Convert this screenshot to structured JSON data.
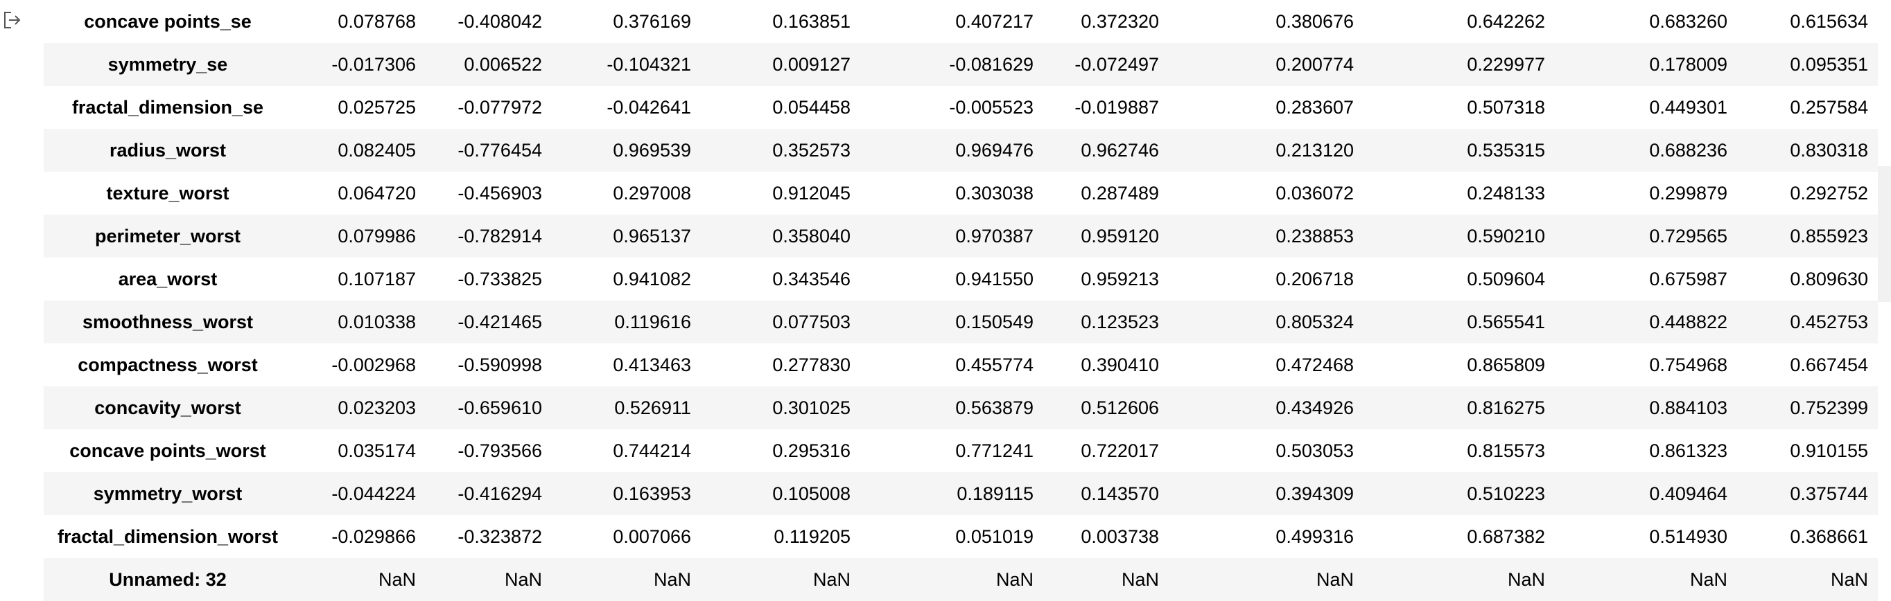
{
  "output_icon": "output-exit-icon",
  "rows": [
    {
      "label": "concave points_se",
      "values": [
        "0.078768",
        "-0.408042",
        "0.376169",
        "0.163851",
        "0.407217",
        "0.372320",
        "0.380676",
        "0.642262",
        "0.683260",
        "0.615634"
      ]
    },
    {
      "label": "symmetry_se",
      "values": [
        "-0.017306",
        "0.006522",
        "-0.104321",
        "0.009127",
        "-0.081629",
        "-0.072497",
        "0.200774",
        "0.229977",
        "0.178009",
        "0.095351"
      ]
    },
    {
      "label": "fractal_dimension_se",
      "values": [
        "0.025725",
        "-0.077972",
        "-0.042641",
        "0.054458",
        "-0.005523",
        "-0.019887",
        "0.283607",
        "0.507318",
        "0.449301",
        "0.257584"
      ]
    },
    {
      "label": "radius_worst",
      "values": [
        "0.082405",
        "-0.776454",
        "0.969539",
        "0.352573",
        "0.969476",
        "0.962746",
        "0.213120",
        "0.535315",
        "0.688236",
        "0.830318"
      ]
    },
    {
      "label": "texture_worst",
      "values": [
        "0.064720",
        "-0.456903",
        "0.297008",
        "0.912045",
        "0.303038",
        "0.287489",
        "0.036072",
        "0.248133",
        "0.299879",
        "0.292752"
      ]
    },
    {
      "label": "perimeter_worst",
      "values": [
        "0.079986",
        "-0.782914",
        "0.965137",
        "0.358040",
        "0.970387",
        "0.959120",
        "0.238853",
        "0.590210",
        "0.729565",
        "0.855923"
      ]
    },
    {
      "label": "area_worst",
      "values": [
        "0.107187",
        "-0.733825",
        "0.941082",
        "0.343546",
        "0.941550",
        "0.959213",
        "0.206718",
        "0.509604",
        "0.675987",
        "0.809630"
      ]
    },
    {
      "label": "smoothness_worst",
      "values": [
        "0.010338",
        "-0.421465",
        "0.119616",
        "0.077503",
        "0.150549",
        "0.123523",
        "0.805324",
        "0.565541",
        "0.448822",
        "0.452753"
      ]
    },
    {
      "label": "compactness_worst",
      "values": [
        "-0.002968",
        "-0.590998",
        "0.413463",
        "0.277830",
        "0.455774",
        "0.390410",
        "0.472468",
        "0.865809",
        "0.754968",
        "0.667454"
      ]
    },
    {
      "label": "concavity_worst",
      "values": [
        "0.023203",
        "-0.659610",
        "0.526911",
        "0.301025",
        "0.563879",
        "0.512606",
        "0.434926",
        "0.816275",
        "0.884103",
        "0.752399"
      ]
    },
    {
      "label": "concave points_worst",
      "values": [
        "0.035174",
        "-0.793566",
        "0.744214",
        "0.295316",
        "0.771241",
        "0.722017",
        "0.503053",
        "0.815573",
        "0.861323",
        "0.910155"
      ]
    },
    {
      "label": "symmetry_worst",
      "values": [
        "-0.044224",
        "-0.416294",
        "0.163953",
        "0.105008",
        "0.189115",
        "0.143570",
        "0.394309",
        "0.510223",
        "0.409464",
        "0.375744"
      ]
    },
    {
      "label": "fractal_dimension_worst",
      "values": [
        "-0.029866",
        "-0.323872",
        "0.007066",
        "0.119205",
        "0.051019",
        "0.003738",
        "0.499316",
        "0.687382",
        "0.514930",
        "0.368661"
      ]
    },
    {
      "label": "Unnamed: 32",
      "values": [
        "NaN",
        "NaN",
        "NaN",
        "NaN",
        "NaN",
        "NaN",
        "NaN",
        "NaN",
        "NaN",
        "NaN"
      ]
    }
  ]
}
